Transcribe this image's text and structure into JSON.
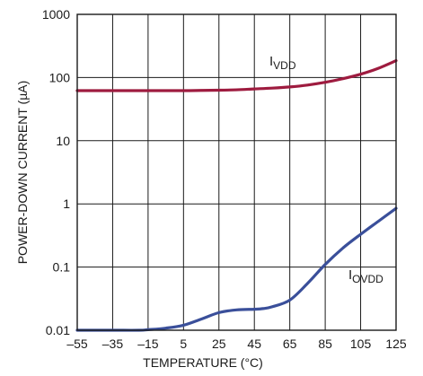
{
  "chart_data": {
    "type": "line",
    "xlabel": "TEMPERATURE (°C)",
    "ylabel": "POWER-DOWN CURRENT (µA)",
    "xlim": [
      -55,
      125
    ],
    "ylim": [
      0.01,
      1000
    ],
    "yscale": "log",
    "grid": true,
    "x_ticks": [
      -55,
      -35,
      -15,
      5,
      25,
      45,
      65,
      85,
      105,
      125
    ],
    "x_tick_labels": [
      "–55",
      "–35",
      "–15",
      "5",
      "25",
      "45",
      "65",
      "85",
      "105",
      "125"
    ],
    "y_ticks": [
      0.01,
      0.1,
      1,
      10,
      100,
      1000
    ],
    "y_tick_labels": [
      "0.01",
      "0.1",
      "1",
      "10",
      "100",
      "1000"
    ],
    "series": [
      {
        "label_main": "I",
        "label_sub": "VDD",
        "color": "#9e1b3f",
        "x": [
          -55,
          -35,
          -15,
          5,
          15,
          25,
          35,
          45,
          55,
          65,
          75,
          85,
          95,
          105,
          115,
          125
        ],
        "y": [
          62,
          62,
          62,
          62,
          62.5,
          63,
          64,
          66,
          68,
          71,
          76,
          84,
          96,
          113,
          140,
          185
        ]
      },
      {
        "label_main": "I",
        "label_sub": "OVDD",
        "color": "#3a4f9a",
        "x": [
          -55,
          -35,
          -20,
          -15,
          -5,
          5,
          15,
          25,
          35,
          45,
          50,
          55,
          65,
          75,
          85,
          95,
          105,
          115,
          125
        ],
        "y": [
          0.01,
          0.01,
          0.01,
          0.0102,
          0.0108,
          0.012,
          0.015,
          0.019,
          0.021,
          0.0215,
          0.022,
          0.0235,
          0.03,
          0.055,
          0.11,
          0.2,
          0.33,
          0.53,
          0.85
        ]
      }
    ]
  }
}
